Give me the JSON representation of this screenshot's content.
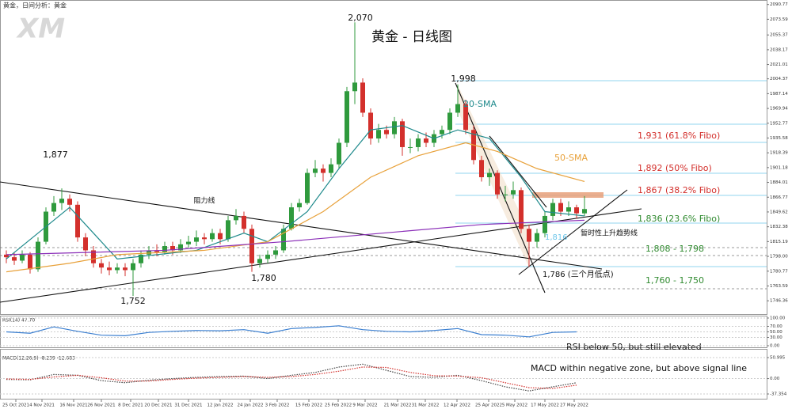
{
  "header": {
    "title": "黄金，日间分析：黄金",
    "logo": "XM"
  },
  "chart_data": [
    {
      "type": "candlestick",
      "title": "黄金 - 日线图",
      "up_color": "#2f9a3d",
      "down_color": "#d3302c",
      "candles": [
        [
          1800,
          1805,
          1790,
          1797
        ],
        [
          1797,
          1802,
          1788,
          1793
        ],
        [
          1793,
          1805,
          1790,
          1800
        ],
        [
          1800,
          1803,
          1778,
          1783
        ],
        [
          1783,
          1820,
          1780,
          1815
        ],
        [
          1815,
          1855,
          1812,
          1850
        ],
        [
          1850,
          1868,
          1845,
          1860
        ],
        [
          1860,
          1877,
          1852,
          1865
        ],
        [
          1865,
          1870,
          1850,
          1858
        ],
        [
          1858,
          1862,
          1815,
          1820
        ],
        [
          1820,
          1825,
          1798,
          1805
        ],
        [
          1805,
          1810,
          1785,
          1790
        ],
        [
          1790,
          1795,
          1778,
          1785
        ],
        [
          1785,
          1792,
          1776,
          1782
        ],
        [
          1782,
          1790,
          1778,
          1785
        ],
        [
          1785,
          1790,
          1775,
          1782
        ],
        [
          1782,
          1795,
          1752,
          1790
        ],
        [
          1790,
          1805,
          1785,
          1800
        ],
        [
          1800,
          1810,
          1795,
          1805
        ],
        [
          1805,
          1812,
          1798,
          1803
        ],
        [
          1803,
          1815,
          1800,
          1810
        ],
        [
          1810,
          1815,
          1800,
          1805
        ],
        [
          1805,
          1818,
          1802,
          1812
        ],
        [
          1812,
          1822,
          1808,
          1815
        ],
        [
          1815,
          1828,
          1810,
          1820
        ],
        [
          1820,
          1825,
          1812,
          1818
        ],
        [
          1818,
          1830,
          1815,
          1825
        ],
        [
          1825,
          1830,
          1812,
          1818
        ],
        [
          1818,
          1845,
          1815,
          1840
        ],
        [
          1840,
          1853,
          1835,
          1845
        ],
        [
          1845,
          1850,
          1825,
          1830
        ],
        [
          1830,
          1835,
          1780,
          1790
        ],
        [
          1790,
          1800,
          1785,
          1795
        ],
        [
          1795,
          1805,
          1790,
          1800
        ],
        [
          1800,
          1810,
          1795,
          1805
        ],
        [
          1805,
          1835,
          1802,
          1830
        ],
        [
          1830,
          1860,
          1828,
          1855
        ],
        [
          1855,
          1865,
          1850,
          1860
        ],
        [
          1860,
          1900,
          1858,
          1895
        ],
        [
          1895,
          1910,
          1890,
          1900
        ],
        [
          1900,
          1905,
          1885,
          1895
        ],
        [
          1895,
          1912,
          1890,
          1905
        ],
        [
          1905,
          1935,
          1900,
          1930
        ],
        [
          1930,
          1995,
          1925,
          1990
        ],
        [
          1990,
          2070,
          1975,
          2000
        ],
        [
          2000,
          2005,
          1960,
          1965
        ],
        [
          1965,
          1970,
          1928,
          1935
        ],
        [
          1935,
          1952,
          1930,
          1945
        ],
        [
          1945,
          1950,
          1935,
          1940
        ],
        [
          1940,
          1960,
          1935,
          1955
        ],
        [
          1955,
          1958,
          1915,
          1925
        ],
        [
          1925,
          1935,
          1918,
          1925
        ],
        [
          1925,
          1940,
          1920,
          1935
        ],
        [
          1935,
          1942,
          1925,
          1930
        ],
        [
          1930,
          1945,
          1925,
          1940
        ],
        [
          1940,
          1950,
          1935,
          1945
        ],
        [
          1945,
          1970,
          1940,
          1965
        ],
        [
          1965,
          1998,
          1960,
          1975
        ],
        [
          1975,
          1980,
          1940,
          1945
        ],
        [
          1945,
          1950,
          1905,
          1910
        ],
        [
          1910,
          1915,
          1885,
          1890
        ],
        [
          1890,
          1900,
          1880,
          1895
        ],
        [
          1895,
          1898,
          1865,
          1870
        ],
        [
          1870,
          1880,
          1862,
          1870
        ],
        [
          1870,
          1885,
          1865,
          1875
        ],
        [
          1875,
          1878,
          1825,
          1830
        ],
        [
          1830,
          1835,
          1786,
          1815
        ],
        [
          1815,
          1830,
          1808,
          1825
        ],
        [
          1825,
          1850,
          1820,
          1845
        ],
        [
          1845,
          1865,
          1840,
          1860
        ],
        [
          1860,
          1865,
          1845,
          1850
        ],
        [
          1850,
          1862,
          1845,
          1855
        ],
        [
          1855,
          1858,
          1842,
          1848
        ],
        [
          1848,
          1868,
          1845,
          1853
        ]
      ],
      "lines": [
        {
          "name": "20-SMA",
          "color": "#1f8a8c",
          "x": [
            0,
            8,
            14,
            24,
            30,
            33,
            38,
            42,
            46,
            50,
            54,
            57,
            61,
            65,
            68,
            73
          ],
          "values": [
            1795,
            1855,
            1795,
            1805,
            1825,
            1815,
            1850,
            1900,
            1945,
            1950,
            1935,
            1945,
            1935,
            1890,
            1850,
            1845
          ]
        },
        {
          "name": "50-SMA",
          "color": "#e8a13a",
          "x": [
            0,
            8,
            14,
            25,
            33,
            40,
            46,
            52,
            58,
            62,
            67,
            73
          ],
          "values": [
            1780,
            1790,
            1800,
            1805,
            1815,
            1850,
            1890,
            1915,
            1930,
            1920,
            1900,
            1885
          ]
        },
        {
          "color": "#8b2fb8",
          "x": [
            0,
            20,
            35,
            60,
            73
          ],
          "values": [
            1800,
            1805,
            1815,
            1835,
            1840
          ]
        }
      ],
      "xlim": [
        -0.8,
        96
      ],
      "ylim": [
        1730,
        2096
      ],
      "yticks": [
        2090.77,
        2073.59,
        2055.37,
        2038.17,
        2021.01,
        2004.37,
        1987.14,
        1969.94,
        1952.77,
        1935.58,
        1918.39,
        1901.18,
        1884.01,
        1866.77,
        1849.62,
        1832.38,
        1815.19,
        {
          "value": 1798,
          "label": "1798.00"
        },
        1780.77,
        1763.59,
        1746.36
      ],
      "xticks": [
        {
          "value": 1.2,
          "label": "25 Oct 2021"
        },
        {
          "value": 4.5,
          "label": "4 Nov 2021"
        },
        {
          "value": 8.5,
          "label": "16 Nov 2021"
        },
        {
          "value": 12,
          "label": "26 Nov 2021"
        },
        {
          "value": 15.7,
          "label": "8 Dec 2021"
        },
        {
          "value": 19.2,
          "label": "20 Dec 2021"
        },
        {
          "value": 23,
          "label": "31 Dec 2021"
        },
        {
          "value": 27,
          "label": "12 Jan 2022"
        },
        {
          "value": 30.8,
          "label": "24 Jan 2022"
        },
        {
          "value": 34.2,
          "label": "3 Feb 2022"
        },
        {
          "value": 38.2,
          "label": "15 Feb 2022"
        },
        {
          "value": 41.9,
          "label": "25 Feb 2022"
        },
        {
          "value": 45.3,
          "label": "9 Mar 2022"
        },
        {
          "value": 49.4,
          "label": "21 Mar 2022"
        },
        {
          "value": 52.9,
          "label": "31 Mar 2022"
        },
        {
          "value": 56.9,
          "label": "12 Apr 2022"
        },
        {
          "value": 60.9,
          "label": "25 Apr 2022"
        },
        {
          "value": 64.2,
          "label": "5 May 2022"
        },
        {
          "value": 68,
          "label": "17 May 2022"
        },
        {
          "value": 71.7,
          "label": "27 May 2022"
        }
      ],
      "annotations": [
        "2,070",
        "1,998",
        "1,877",
        "阻力线",
        "1,780",
        "1,752",
        "1,931 (61.8% Fibo)",
        "1,892 (50% Fibo)",
        "1,867 (38.2% Fibo)",
        "1,836 (23.6% Fibo)",
        "暂时性上升趋势线",
        "1,808 - 1,798",
        "1,786 (三个月低点)",
        "1,760 - 1,750",
        "1,816"
      ]
    },
    {
      "type": "line",
      "title": "RSI(14) 47.70",
      "color": "#3b7fd0",
      "x": [
        0,
        3,
        6,
        9,
        12,
        15,
        18,
        21,
        24,
        27,
        30,
        33,
        36,
        39,
        42,
        45,
        48,
        51,
        54,
        57,
        60,
        63,
        66,
        69,
        72
      ],
      "values": [
        50,
        45,
        68,
        52,
        38,
        36,
        48,
        52,
        55,
        54,
        58,
        45,
        62,
        66,
        72,
        58,
        52,
        50,
        55,
        62,
        40,
        38,
        32,
        48,
        50
      ],
      "xlim": [
        -0.8,
        96
      ],
      "ylim": [
        0,
        100
      ],
      "yticks": [
        {
          "value": 100,
          "label": "100.00"
        },
        {
          "value": 70,
          "label": "70.00"
        },
        {
          "value": 50,
          "label": "50.00"
        },
        {
          "value": 30,
          "label": "30.00"
        },
        {
          "value": 0,
          "label": "0.00"
        }
      ],
      "annotation": "RSI below 50, but still elevated"
    },
    {
      "type": "line",
      "title": "MACD(12,26,9) -8.239 -12.683",
      "series": [
        {
          "color": "#444444",
          "x": [
            0,
            3,
            6,
            9,
            12,
            15,
            18,
            21,
            24,
            27,
            30,
            33,
            36,
            39,
            42,
            45,
            48,
            51,
            54,
            57,
            60,
            63,
            66,
            69,
            72
          ],
          "values": [
            -2,
            -3,
            10,
            8,
            -5,
            -10,
            -4,
            0,
            3,
            5,
            6,
            0,
            8,
            15,
            28,
            35,
            20,
            5,
            3,
            8,
            -5,
            -20,
            -30,
            -20,
            -10
          ]
        },
        {
          "color": "#d3302c",
          "x": [
            0,
            3,
            6,
            9,
            12,
            15,
            18,
            21,
            24,
            27,
            30,
            33,
            36,
            39,
            42,
            45,
            48,
            51,
            54,
            57,
            60,
            63,
            66,
            69,
            72
          ],
          "values": [
            -1,
            -2,
            4,
            8,
            2,
            -6,
            -6,
            -2,
            1,
            3,
            5,
            3,
            5,
            10,
            18,
            28,
            27,
            15,
            7,
            6,
            2,
            -10,
            -22,
            -24,
            -16
          ]
        }
      ],
      "xlim": [
        -0.8,
        96
      ],
      "ylim": [
        -50.8,
        70.2
      ],
      "yticks": [
        50.995,
        {
          "value": 0,
          "label": "0.00"
        },
        -37.354
      ],
      "annotation": "MACD within negative zone, but above signal line"
    }
  ]
}
